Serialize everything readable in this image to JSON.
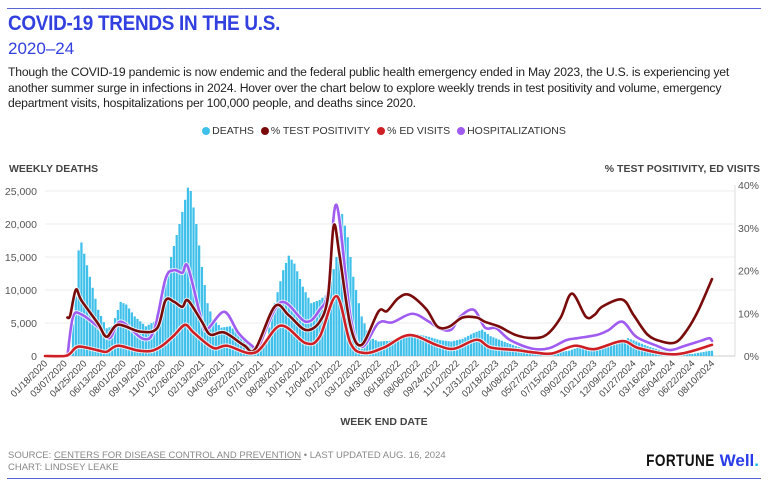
{
  "header": {
    "title": "COVID-19 TRENDS IN THE U.S.",
    "subtitle": "2020–24",
    "description": "Though the COVID-19 pandemic is now endemic and the federal public health emergency ended in May 2023, the U.S. is experiencing yet another summer surge in infections in 2024. Hover over the chart below to explore weekly trends in test positivity and volume, emergency department visits, hospitalizations per 100,000 people, and deaths since 2020."
  },
  "legend": [
    {
      "label": "DEATHS",
      "color": "#3fc0ea"
    },
    {
      "label": "% TEST POSITIVITY",
      "color": "#7a0b0b"
    },
    {
      "label": "% ED VISITS",
      "color": "#d01f24"
    },
    {
      "label": "HOSPITALIZATIONS",
      "color": "#a05cf0"
    }
  ],
  "footer": {
    "source_prefix": "SOURCE: ",
    "source_link": "CENTERS FOR DISEASE CONTROL AND PREVENTION",
    "updated": " • LAST UPDATED AUG. 16, 2024",
    "credit": "CHART: LINDSEY LEAKE",
    "logo_text": "FORTUNE Well."
  },
  "chart_data": {
    "type": "bar+line",
    "ylabel_left": "WEEKLY DEATHS",
    "ylabel_right": "% TEST POSITIVITY, ED VISITS",
    "xlabel": "WEEK END DATE",
    "ylim_left": [
      0,
      25000
    ],
    "ylim_right": [
      0,
      40
    ],
    "yticks_left": [
      "0",
      "5,000",
      "10,000",
      "15,000",
      "20,000",
      "25,000"
    ],
    "yticks_right": [
      "0%",
      "10%",
      "20%",
      "30%",
      "40%"
    ],
    "grid": true,
    "legend_placement": "top-center",
    "x_start": "2020-01-18",
    "x_end": "2024-08-10",
    "xticks": [
      "01/18/2020",
      "03/07/2020",
      "04/25/2020",
      "06/13/2020",
      "08/01/2020",
      "09/19/2020",
      "11/07/2020",
      "12/26/2020",
      "02/13/2021",
      "04/03/2021",
      "05/22/2021",
      "07/10/2021",
      "08/28/2021",
      "10/16/2021",
      "12/04/2021",
      "01/22/2022",
      "03/12/2022",
      "04/30/2022",
      "06/18/2022",
      "08/06/2022",
      "09/24/2022",
      "11/12/2022",
      "12/31/2022",
      "02/18/2023",
      "04/08/2023",
      "05/27/2023",
      "07/15/2023",
      "09/02/2023",
      "10/21/2023",
      "12/09/2023",
      "01/27/2024",
      "03/16/2024",
      "05/04/2024",
      "06/22/2024",
      "08/10/2024"
    ],
    "series": [
      {
        "name": "DEATHS",
        "type": "bar",
        "axis": "left",
        "color": "#3fc0ea",
        "points": [
          [
            "2020-01-18",
            0
          ],
          [
            "2020-03-14",
            0
          ],
          [
            "2020-03-21",
            600
          ],
          [
            "2020-04-04",
            9000
          ],
          [
            "2020-04-11",
            16000
          ],
          [
            "2020-04-18",
            17200
          ],
          [
            "2020-04-25",
            15500
          ],
          [
            "2020-05-09",
            12000
          ],
          [
            "2020-05-30",
            7000
          ],
          [
            "2020-06-20",
            4200
          ],
          [
            "2020-07-04",
            4500
          ],
          [
            "2020-07-25",
            8200
          ],
          [
            "2020-08-08",
            7800
          ],
          [
            "2020-08-29",
            6000
          ],
          [
            "2020-09-26",
            4500
          ],
          [
            "2020-10-17",
            5200
          ],
          [
            "2020-11-07",
            9000
          ],
          [
            "2020-11-28",
            15000
          ],
          [
            "2020-12-19",
            20000
          ],
          [
            "2021-01-09",
            25500
          ],
          [
            "2021-01-16",
            25000
          ],
          [
            "2021-01-30",
            20000
          ],
          [
            "2021-02-13",
            13500
          ],
          [
            "2021-02-27",
            8000
          ],
          [
            "2021-03-13",
            5500
          ],
          [
            "2021-04-03",
            4300
          ],
          [
            "2021-04-24",
            4500
          ],
          [
            "2021-05-15",
            3500
          ],
          [
            "2021-06-12",
            2000
          ],
          [
            "2021-07-03",
            1300
          ],
          [
            "2021-07-24",
            2500
          ],
          [
            "2021-08-14",
            8000
          ],
          [
            "2021-09-04",
            13000
          ],
          [
            "2021-09-18",
            15200
          ],
          [
            "2021-10-02",
            14000
          ],
          [
            "2021-10-23",
            10500
          ],
          [
            "2021-11-13",
            8000
          ],
          [
            "2021-12-04",
            8500
          ],
          [
            "2021-12-25",
            9500
          ],
          [
            "2022-01-15",
            15000
          ],
          [
            "2022-01-29",
            21500
          ],
          [
            "2022-02-12",
            18000
          ],
          [
            "2022-02-26",
            12000
          ],
          [
            "2022-03-19",
            6000
          ],
          [
            "2022-04-09",
            2800
          ],
          [
            "2022-04-30",
            2200
          ],
          [
            "2022-05-28",
            2300
          ],
          [
            "2022-07-02",
            2800
          ],
          [
            "2022-08-06",
            3300
          ],
          [
            "2022-09-03",
            2900
          ],
          [
            "2022-10-01",
            2400
          ],
          [
            "2022-10-29",
            2200
          ],
          [
            "2022-11-26",
            2600
          ],
          [
            "2022-12-24",
            3500
          ],
          [
            "2023-01-14",
            4000
          ],
          [
            "2023-02-04",
            3000
          ],
          [
            "2023-03-04",
            2300
          ],
          [
            "2023-04-08",
            1500
          ],
          [
            "2023-05-13",
            900
          ],
          [
            "2023-06-17",
            500
          ],
          [
            "2023-07-15",
            500
          ],
          [
            "2023-08-19",
            800
          ],
          [
            "2023-09-16",
            1400
          ],
          [
            "2023-10-21",
            1300
          ],
          [
            "2023-11-18",
            1300
          ],
          [
            "2023-12-16",
            1800
          ],
          [
            "2024-01-13",
            2700
          ],
          [
            "2024-02-03",
            2200
          ],
          [
            "2024-03-02",
            1500
          ],
          [
            "2024-04-06",
            800
          ],
          [
            "2024-05-11",
            400
          ],
          [
            "2024-06-22",
            300
          ],
          [
            "2024-07-27",
            700
          ],
          [
            "2024-08-10",
            800
          ]
        ]
      },
      {
        "name": "% TEST POSITIVITY",
        "type": "line",
        "axis": "right",
        "color": "#7a0b0b",
        "points": [
          [
            "2020-03-14",
            9
          ],
          [
            "2020-03-21",
            9.5
          ],
          [
            "2020-04-04",
            15.5
          ],
          [
            "2020-04-18",
            13
          ],
          [
            "2020-05-30",
            7.5
          ],
          [
            "2020-06-20",
            4.5
          ],
          [
            "2020-07-18",
            7.3
          ],
          [
            "2020-09-12",
            5.7
          ],
          [
            "2020-10-24",
            6.5
          ],
          [
            "2020-11-14",
            13
          ],
          [
            "2020-12-05",
            12.7
          ],
          [
            "2020-12-26",
            11.5
          ],
          [
            "2021-01-09",
            13
          ],
          [
            "2021-02-13",
            8
          ],
          [
            "2021-03-06",
            5
          ],
          [
            "2021-04-10",
            5.5
          ],
          [
            "2021-05-29",
            2.5
          ],
          [
            "2021-06-26",
            1.6
          ],
          [
            "2021-08-14",
            11.6
          ],
          [
            "2021-09-18",
            9.5
          ],
          [
            "2021-10-30",
            6.1
          ],
          [
            "2021-12-04",
            8
          ],
          [
            "2021-12-25",
            14
          ],
          [
            "2022-01-08",
            30.4
          ],
          [
            "2022-01-22",
            24
          ],
          [
            "2022-02-19",
            7
          ],
          [
            "2022-03-19",
            2.6
          ],
          [
            "2022-04-30",
            10.4
          ],
          [
            "2022-05-21",
            10.5
          ],
          [
            "2022-06-18",
            13.5
          ],
          [
            "2022-07-16",
            14.3
          ],
          [
            "2022-08-27",
            11
          ],
          [
            "2022-09-24",
            6.9
          ],
          [
            "2022-10-22",
            6.8
          ],
          [
            "2022-11-26",
            9
          ],
          [
            "2022-12-31",
            9
          ],
          [
            "2023-01-21",
            8
          ],
          [
            "2023-02-25",
            6.9
          ],
          [
            "2023-04-08",
            4.9
          ],
          [
            "2023-05-20",
            4.2
          ],
          [
            "2023-06-24",
            5
          ],
          [
            "2023-07-29",
            9
          ],
          [
            "2023-08-26",
            14.6
          ],
          [
            "2023-09-30",
            9.2
          ],
          [
            "2023-10-21",
            9.6
          ],
          [
            "2023-11-11",
            11.6
          ],
          [
            "2023-12-30",
            13.2
          ],
          [
            "2024-01-27",
            9.6
          ],
          [
            "2024-03-02",
            5
          ],
          [
            "2024-04-06",
            3.4
          ],
          [
            "2024-05-11",
            3.2
          ],
          [
            "2024-06-08",
            6
          ],
          [
            "2024-07-06",
            10.5
          ],
          [
            "2024-08-10",
            18
          ]
        ]
      },
      {
        "name": "% ED VISITS",
        "type": "line",
        "axis": "right",
        "color": "#d01f24",
        "points": [
          [
            "2020-01-18",
            0
          ],
          [
            "2020-03-07",
            0
          ],
          [
            "2020-03-21",
            0.6
          ],
          [
            "2020-04-11",
            2.2
          ],
          [
            "2020-05-30",
            1.3
          ],
          [
            "2020-06-20",
            1.0
          ],
          [
            "2020-07-18",
            2.4
          ],
          [
            "2020-09-05",
            1.3
          ],
          [
            "2020-10-10",
            1.2
          ],
          [
            "2020-11-07",
            2.5
          ],
          [
            "2020-12-05",
            4.8
          ],
          [
            "2021-01-02",
            7.3
          ],
          [
            "2021-01-23",
            5.5
          ],
          [
            "2021-03-13",
            1.9
          ],
          [
            "2021-04-17",
            2.4
          ],
          [
            "2021-06-26",
            0.8
          ],
          [
            "2021-08-28",
            7.1
          ],
          [
            "2021-10-30",
            3
          ],
          [
            "2021-12-04",
            4.5
          ],
          [
            "2022-01-15",
            14
          ],
          [
            "2022-02-19",
            3
          ],
          [
            "2022-03-26",
            0.7
          ],
          [
            "2022-05-14",
            2
          ],
          [
            "2022-07-16",
            4.9
          ],
          [
            "2022-09-24",
            2.5
          ],
          [
            "2022-11-05",
            1.7
          ],
          [
            "2022-12-31",
            3.8
          ],
          [
            "2023-02-04",
            2
          ],
          [
            "2023-04-08",
            1.4
          ],
          [
            "2023-05-27",
            0.8
          ],
          [
            "2023-07-08",
            0.6
          ],
          [
            "2023-09-02",
            2.4
          ],
          [
            "2023-10-21",
            1.6
          ],
          [
            "2023-12-30",
            3.5
          ],
          [
            "2024-02-10",
            1.8
          ],
          [
            "2024-05-11",
            0.4
          ],
          [
            "2024-08-10",
            2.6
          ]
        ]
      },
      {
        "name": "HOSPITALIZATIONS",
        "type": "line",
        "axis": "left",
        "color": "#a05cf0",
        "points": [
          [
            "2020-03-14",
            0
          ],
          [
            "2020-03-28",
            5950
          ],
          [
            "2020-04-18",
            6300
          ],
          [
            "2020-05-30",
            4400
          ],
          [
            "2020-06-27",
            2700
          ],
          [
            "2020-07-25",
            5200
          ],
          [
            "2020-09-19",
            2600
          ],
          [
            "2020-10-17",
            4000
          ],
          [
            "2020-11-14",
            11700
          ],
          [
            "2020-12-05",
            13000
          ],
          [
            "2020-12-26",
            12600
          ],
          [
            "2021-01-09",
            13500
          ],
          [
            "2021-02-13",
            5200
          ],
          [
            "2021-02-27",
            4100
          ],
          [
            "2021-04-10",
            6700
          ],
          [
            "2021-05-15",
            3500
          ],
          [
            "2021-06-19",
            1500
          ],
          [
            "2021-07-03",
            1200
          ],
          [
            "2021-08-28",
            8100
          ],
          [
            "2021-10-30",
            5200
          ],
          [
            "2021-12-04",
            7000
          ],
          [
            "2021-12-25",
            10000
          ],
          [
            "2022-01-15",
            22900
          ],
          [
            "2022-02-19",
            6000
          ],
          [
            "2022-03-19",
            1400
          ],
          [
            "2022-04-30",
            5000
          ],
          [
            "2022-06-04",
            5100
          ],
          [
            "2022-07-23",
            6400
          ],
          [
            "2022-09-03",
            5200
          ],
          [
            "2022-10-01",
            4100
          ],
          [
            "2022-10-29",
            4000
          ],
          [
            "2022-11-19",
            5900
          ],
          [
            "2022-12-24",
            7000
          ],
          [
            "2023-01-21",
            4300
          ],
          [
            "2023-02-18",
            4200
          ],
          [
            "2023-03-25",
            2400
          ],
          [
            "2023-05-20",
            1100
          ],
          [
            "2023-07-01",
            1200
          ],
          [
            "2023-08-12",
            2400
          ],
          [
            "2023-09-09",
            2700
          ],
          [
            "2023-10-28",
            3200
          ],
          [
            "2023-11-25",
            3900
          ],
          [
            "2023-12-30",
            5200
          ],
          [
            "2024-02-03",
            2900
          ],
          [
            "2024-03-23",
            1600
          ],
          [
            "2024-04-27",
            900
          ],
          [
            "2024-06-01",
            1500
          ],
          [
            "2024-07-13",
            2300
          ],
          [
            "2024-08-03",
            2700
          ],
          [
            "2024-08-10",
            2300
          ]
        ]
      }
    ]
  }
}
